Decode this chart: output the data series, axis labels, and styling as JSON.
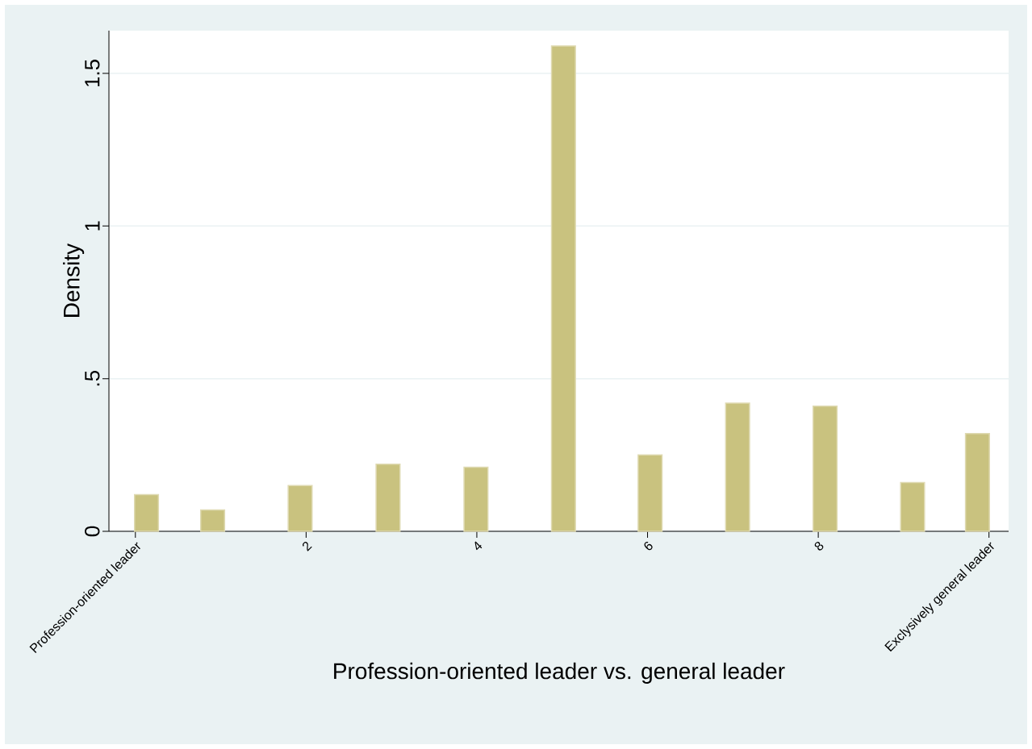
{
  "chart_data": {
    "type": "bar",
    "xlabel": "Profession-oriented leader vs. general leader",
    "ylabel": "Density",
    "x": [
      0.13,
      0.905,
      1.93,
      2.96,
      3.99,
      5.015,
      6.03,
      7.055,
      8.08,
      9.105,
      9.865
    ],
    "values": [
      0.12,
      0.07,
      0.15,
      0.22,
      0.21,
      1.59,
      0.25,
      0.42,
      0.41,
      0.16,
      0.32
    ],
    "color": "#c9c27f",
    "xlim": [
      -0.31,
      10.23
    ],
    "xticks": [
      {
        "value": 0,
        "label": "Profession-oriented leader"
      },
      2,
      4,
      6,
      8,
      {
        "value": 10,
        "label": "Exclysively general leader"
      }
    ],
    "ylim": [
      0,
      1.64
    ],
    "yticks": [
      0,
      {
        "value": 0.5,
        "label": ".5"
      },
      1,
      1.5
    ],
    "grid": "y"
  }
}
